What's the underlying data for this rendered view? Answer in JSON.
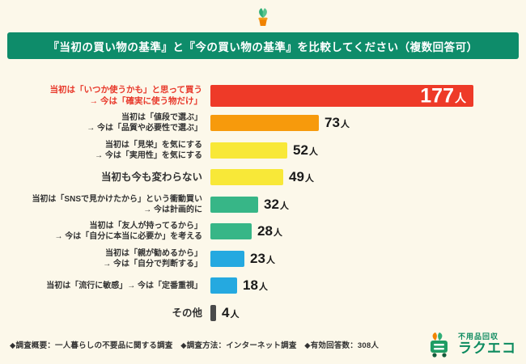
{
  "header": {
    "title": "『当初の買い物の基準』と『今の買い物の基準』を比較してください（複数回答可）",
    "bg_color": "#0e8c6a"
  },
  "chart_data": {
    "type": "bar",
    "orientation": "horizontal",
    "unit": "人",
    "xlim": [
      0,
      180
    ],
    "max_value": 177,
    "values": [
      177,
      73,
      52,
      49,
      32,
      28,
      23,
      18,
      4
    ],
    "rows": [
      {
        "label_lines": [
          "当初は「いつか使うかも」と思って買う",
          "→ 今は「確実に使う物だけ」"
        ],
        "value": 177,
        "color": "#ee3a28",
        "label_style": "red",
        "value_inside": true
      },
      {
        "label_lines": [
          "当初は「値段で選ぶ」",
          "→ 今は「品質や必要性で選ぶ」"
        ],
        "value": 73,
        "color": "#f79a0c",
        "label_style": "",
        "value_inside": false
      },
      {
        "label_lines": [
          "当初は「見栄」を気にする",
          "→ 今は「実用性」を気にする"
        ],
        "value": 52,
        "color": "#f8e838",
        "label_style": "",
        "value_inside": false
      },
      {
        "label_lines": [
          "当初も今も変わらない"
        ],
        "value": 49,
        "color": "#f8e838",
        "label_style": "big",
        "value_inside": false
      },
      {
        "label_lines": [
          "当初は「SNSで見かけたから」という衝動買い",
          "→ 今は計画的に"
        ],
        "value": 32,
        "color": "#37b687",
        "label_style": "",
        "value_inside": false
      },
      {
        "label_lines": [
          "当初は「友人が持ってるから」",
          "→ 今は「自分に本当に必要か」を考える"
        ],
        "value": 28,
        "color": "#37b687",
        "label_style": "",
        "value_inside": false
      },
      {
        "label_lines": [
          "当初は「親が勧めるから」",
          "→ 今は「自分で判断する」"
        ],
        "value": 23,
        "color": "#25a9e0",
        "label_style": "",
        "value_inside": false
      },
      {
        "label_lines": [
          "当初は「流行に敏感」→ 今は「定番重視」"
        ],
        "value": 18,
        "color": "#25a9e0",
        "label_style": "",
        "value_inside": false
      },
      {
        "label_lines": [
          "その他"
        ],
        "value": 4,
        "color": "#4a4a4a",
        "label_style": "big",
        "value_inside": false
      }
    ]
  },
  "footer": {
    "text": "◆調査概要：一人暮らしの不要品に関する調査　◆調査方法：インターネット調査　◆有効回答数：308人"
  },
  "logo": {
    "service": "不用品回収",
    "brand": "ラクエコ"
  }
}
